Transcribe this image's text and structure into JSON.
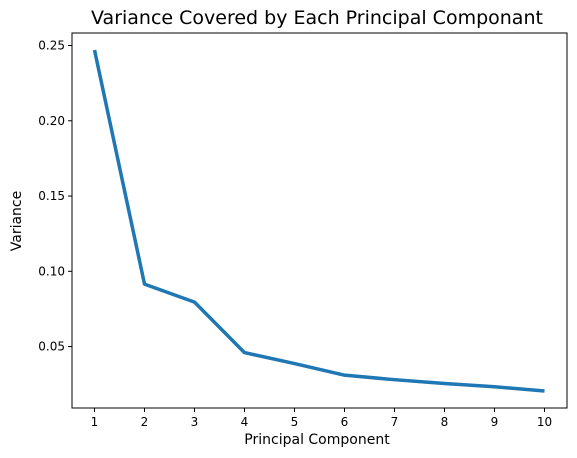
{
  "chart_data": {
    "type": "line",
    "title": "Variance Covered by Each Principal Componant",
    "xlabel": "Principal Component",
    "ylabel": "Variance",
    "x": [
      1,
      2,
      3,
      4,
      5,
      6,
      7,
      8,
      9,
      10
    ],
    "series": [
      {
        "values": [
          0.247,
          0.0915,
          0.0795,
          0.046,
          0.0387,
          0.031,
          0.028,
          0.0255,
          0.0233,
          0.0205
        ],
        "color": "#1f77b4"
      }
    ],
    "xticks": [
      1,
      2,
      3,
      4,
      5,
      6,
      7,
      8,
      9,
      10
    ],
    "xtick_labels": [
      "1",
      "2",
      "3",
      "4",
      "5",
      "6",
      "7",
      "8",
      "9",
      "10"
    ],
    "yticks": [
      0.05,
      0.1,
      0.15,
      0.2,
      0.25
    ],
    "ytick_labels": [
      "0.05",
      "0.10",
      "0.15",
      "0.20",
      "0.25"
    ],
    "xlim": [
      0.55,
      10.45
    ],
    "ylim": [
      0.00919,
      0.25831
    ],
    "grid": false,
    "legend": "none"
  }
}
